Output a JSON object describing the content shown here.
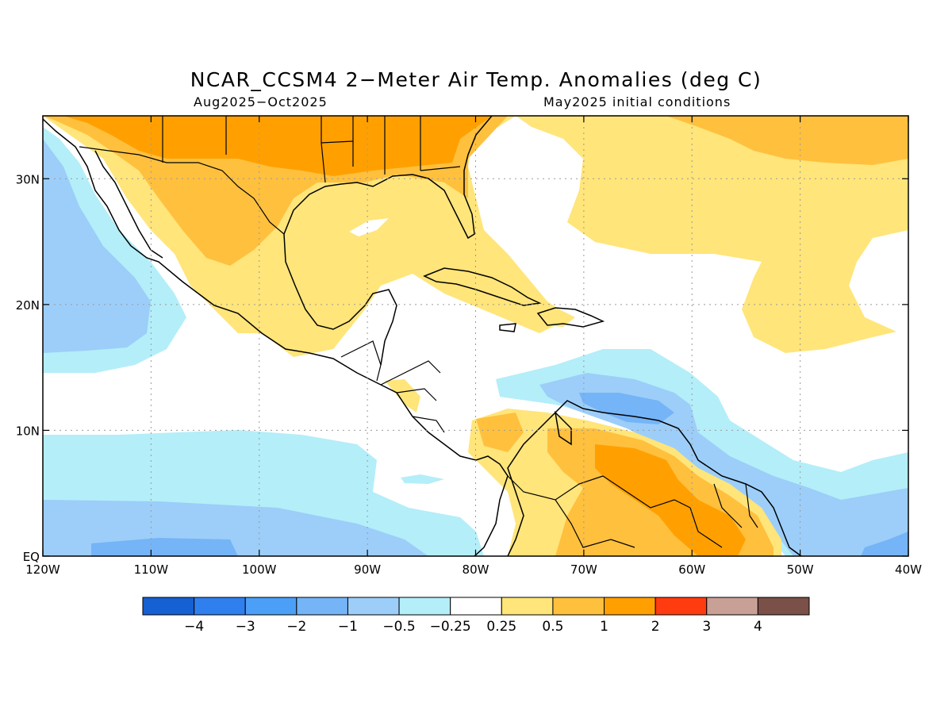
{
  "title": "NCAR_CCSM4 2−Meter Air Temp. Anomalies (deg C)",
  "period": "Aug2025−Oct2025",
  "init": "May2025 initial conditions",
  "map": {
    "lon_range": [
      -120,
      -40
    ],
    "lat_range": [
      0,
      35
    ],
    "x_ticks": [
      {
        "lon": -120,
        "label": "120W"
      },
      {
        "lon": -110,
        "label": "110W"
      },
      {
        "lon": -100,
        "label": "100W"
      },
      {
        "lon": -90,
        "label": "90W"
      },
      {
        "lon": -80,
        "label": "80W"
      },
      {
        "lon": -70,
        "label": "70W"
      },
      {
        "lon": -60,
        "label": "60W"
      },
      {
        "lon": -50,
        "label": "50W"
      },
      {
        "lon": -40,
        "label": "40W"
      }
    ],
    "y_ticks": [
      {
        "lat": 0,
        "label": "EQ"
      },
      {
        "lat": 10,
        "label": "10N"
      },
      {
        "lat": 20,
        "label": "20N"
      },
      {
        "lat": 30,
        "label": "30N"
      }
    ],
    "grid": true
  },
  "colorbar": {
    "colors": [
      "#1560d2",
      "#2f7fee",
      "#4c9ff6",
      "#75b4f6",
      "#9ccef9",
      "#b4eef9",
      "#ffffff",
      "#ffe57a",
      "#ffc03e",
      "#ffa000",
      "#ff3c0f",
      "#c8a096",
      "#7a5048"
    ],
    "labels": [
      "−4",
      "−3",
      "−2",
      "−1",
      "−0.5",
      "−0.25",
      "0.25",
      "0.5",
      "1",
      "2",
      "3",
      "4"
    ]
  }
}
